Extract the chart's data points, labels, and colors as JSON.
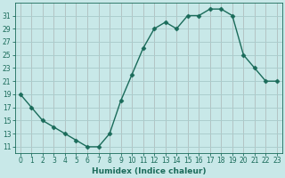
{
  "x": [
    0,
    1,
    2,
    3,
    4,
    5,
    6,
    7,
    8,
    9,
    10,
    11,
    12,
    13,
    14,
    15,
    16,
    17,
    18,
    19,
    20,
    21,
    22,
    23
  ],
  "y": [
    19,
    17,
    15,
    14,
    13,
    12,
    11,
    11,
    13,
    18,
    22,
    26,
    29,
    30,
    29,
    31,
    31,
    32,
    32,
    31,
    25,
    23,
    21,
    21
  ],
  "line_color": "#1a6b5a",
  "marker": "D",
  "marker_size": 2.5,
  "bg_color": "#c8e8e8",
  "grid_color": "#aacccc",
  "xlabel": "Humidex (Indice chaleur)",
  "xlabel_fontsize": 6.5,
  "ylabel_ticks": [
    11,
    13,
    15,
    17,
    19,
    21,
    23,
    25,
    27,
    29,
    31
  ],
  "ylim": [
    10,
    33
  ],
  "xlim": [
    -0.5,
    23.5
  ],
  "xtick_labels": [
    "0",
    "1",
    "2",
    "3",
    "4",
    "5",
    "6",
    "7",
    "8",
    "9",
    "10",
    "11",
    "12",
    "13",
    "14",
    "15",
    "16",
    "17",
    "18",
    "19",
    "20",
    "21",
    "22",
    "23"
  ],
  "tick_fontsize": 5.5
}
